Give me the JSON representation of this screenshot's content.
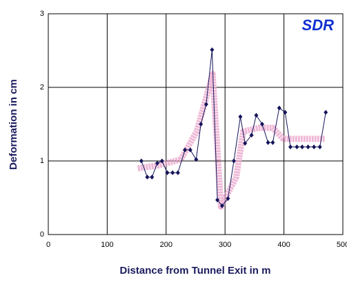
{
  "chart_data": {
    "type": "line",
    "logo": "SDR",
    "xlabel": "Distance from Tunnel Exit in m",
    "ylabel": "Deformation in cm",
    "xlim": [
      0,
      500
    ],
    "xticks": [
      0,
      100,
      200,
      300,
      400,
      500
    ],
    "ylim": [
      0,
      3
    ],
    "yticks": [
      0,
      1,
      2,
      3
    ],
    "grid": true,
    "series": [
      {
        "color": "#e8a0c8",
        "style": "band",
        "x": [
          152,
          187,
          225,
          252,
          279,
          293,
          319,
          331,
          357,
          381,
          399,
          410,
          469
        ],
        "values": [
          0.9,
          0.94,
          1.02,
          1.4,
          2.18,
          0.38,
          0.78,
          1.4,
          1.45,
          1.45,
          1.3,
          1.3,
          1.3
        ]
      },
      {
        "color": "#14145a",
        "style": "markers",
        "x": [
          158,
          168,
          176,
          185,
          193,
          202,
          211,
          220,
          232,
          241,
          251,
          259,
          268,
          278,
          287,
          295,
          305,
          315,
          326,
          334,
          345,
          353,
          363,
          373,
          381,
          392,
          402,
          411,
          422,
          431,
          441,
          451,
          461,
          471
        ],
        "values": [
          1.0,
          0.78,
          0.78,
          0.97,
          1.0,
          0.84,
          0.84,
          0.84,
          1.15,
          1.15,
          1.02,
          1.5,
          1.77,
          2.51,
          0.47,
          0.39,
          0.49,
          1.0,
          1.6,
          1.24,
          1.35,
          1.62,
          1.5,
          1.25,
          1.25,
          1.72,
          1.66,
          1.19,
          1.19,
          1.19,
          1.19,
          1.19,
          1.19,
          1.66
        ]
      }
    ]
  }
}
